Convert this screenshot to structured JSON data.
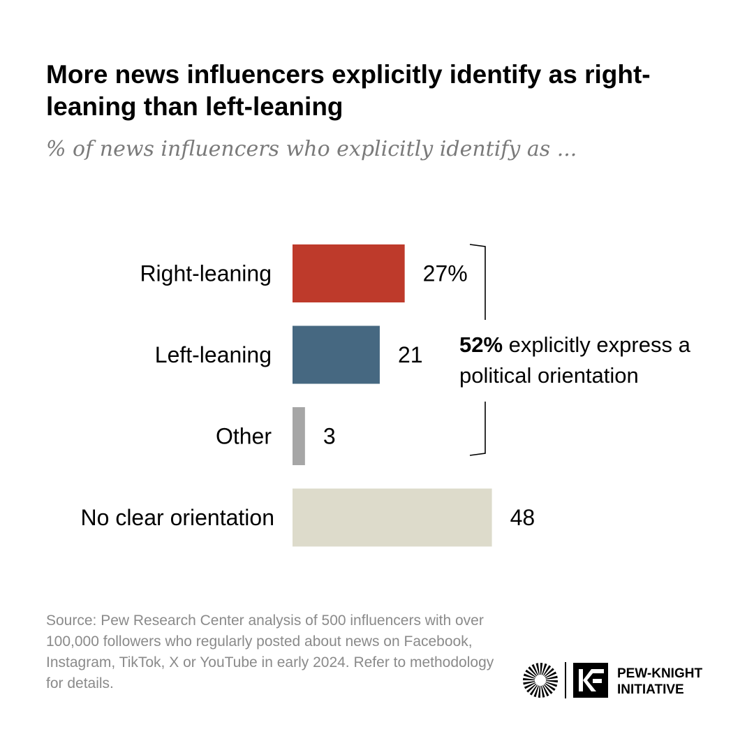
{
  "title": "More news influencers explicitly identify as right-leaning than left-leaning",
  "subtitle": "% of news influencers who explicitly identify as ...",
  "chart_data": {
    "type": "bar",
    "orientation": "horizontal",
    "categories": [
      "Right-leaning",
      "Left-leaning",
      "Other",
      "No clear orientation"
    ],
    "values": [
      27,
      21,
      3,
      48
    ],
    "value_labels": [
      "27%",
      "21",
      "3",
      "48"
    ],
    "colors": [
      "#be3a2b",
      "#466881",
      "#a6a6a6",
      "#dddbcb"
    ],
    "grid": false,
    "legend": "none"
  },
  "annotation": {
    "bold": "52%",
    "text": " explicitly express a political orientation"
  },
  "source": "Source: Pew Research Center analysis of 500 influencers with over 100,000 followers who regularly posted about news on Facebook, Instagram, TikTok, X or YouTube in early 2024. Refer to methodology for details.",
  "logo": {
    "line1": "PEW-KNIGHT",
    "line2": "INITIATIVE",
    "mark": "KF",
    "icons": [
      "sunburst-icon",
      "kf-logo-icon"
    ]
  }
}
